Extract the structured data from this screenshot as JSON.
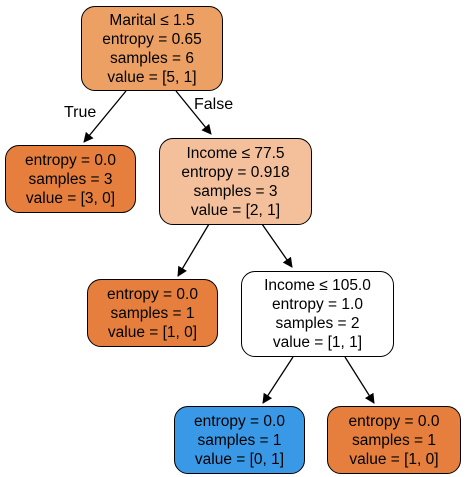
{
  "colors": {
    "root": "#eda064",
    "income_77": "#f4c09c",
    "leaf_orange": "#e67f3e",
    "income_105": "#ffffff",
    "leaf_blue": "#3a99e6",
    "edge": "#000000"
  },
  "edge_labels": {
    "true": "True",
    "false": "False"
  },
  "nodes": {
    "root": {
      "lines": [
        "Marital ≤ 1.5",
        "entropy = 0.65",
        "samples = 6",
        "value = [5, 1]"
      ]
    },
    "leaf_left": {
      "lines": [
        "entropy = 0.0",
        "samples = 3",
        "value = [3, 0]"
      ]
    },
    "income_77": {
      "lines": [
        "Income ≤ 77.5",
        "entropy = 0.918",
        "samples = 3",
        "value = [2, 1]"
      ]
    },
    "leaf_mid": {
      "lines": [
        "entropy = 0.0",
        "samples = 1",
        "value = [1, 0]"
      ]
    },
    "income_105": {
      "lines": [
        "Income ≤ 105.0",
        "entropy = 1.0",
        "samples = 2",
        "value = [1, 1]"
      ]
    },
    "leaf_blue": {
      "lines": [
        "entropy = 0.0",
        "samples = 1",
        "value = [0, 1]"
      ]
    },
    "leaf_right": {
      "lines": [
        "entropy = 0.0",
        "samples = 1",
        "value = [1, 0]"
      ]
    }
  }
}
